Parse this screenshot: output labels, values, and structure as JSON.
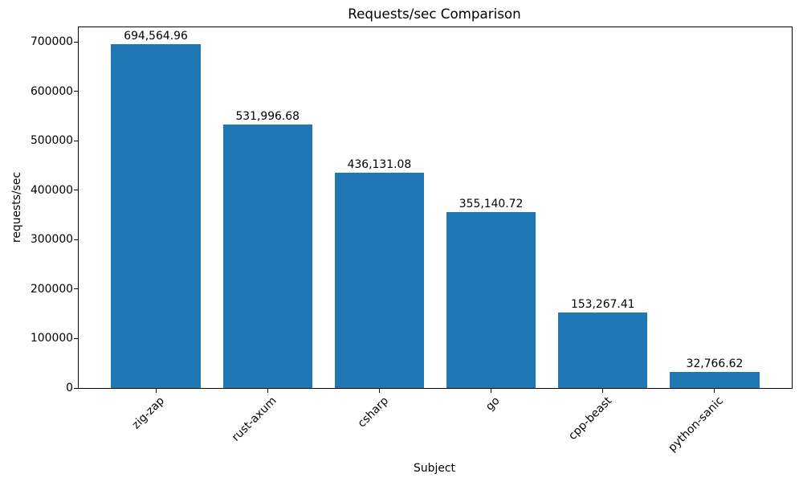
{
  "figure": {
    "background_color": "#ffffff",
    "text_color": "#000000"
  },
  "chart_data": {
    "type": "bar",
    "title": "Requests/sec Comparison",
    "xlabel": "Subject",
    "ylabel": "requests/sec",
    "categories": [
      "zig-zap",
      "rust-axum",
      "csharp",
      "go",
      "cpp-beast",
      "python-sanic"
    ],
    "values": [
      694564.96,
      531996.68,
      436131.08,
      355140.72,
      153267.41,
      32766.62
    ],
    "value_labels": [
      "694,564.96",
      "531,996.68",
      "436,131.08",
      "355,140.72",
      "153,267.41",
      "32,766.62"
    ],
    "yticks": [
      0,
      100000,
      200000,
      300000,
      400000,
      500000,
      600000,
      700000
    ],
    "ytick_labels": [
      "0",
      "100000",
      "200000",
      "300000",
      "400000",
      "500000",
      "600000",
      "700000"
    ],
    "ylim": [
      0,
      729293
    ],
    "xtick_rotation_deg": 45,
    "bar_color": "#1f77b4",
    "grid": false,
    "legend": "none"
  }
}
